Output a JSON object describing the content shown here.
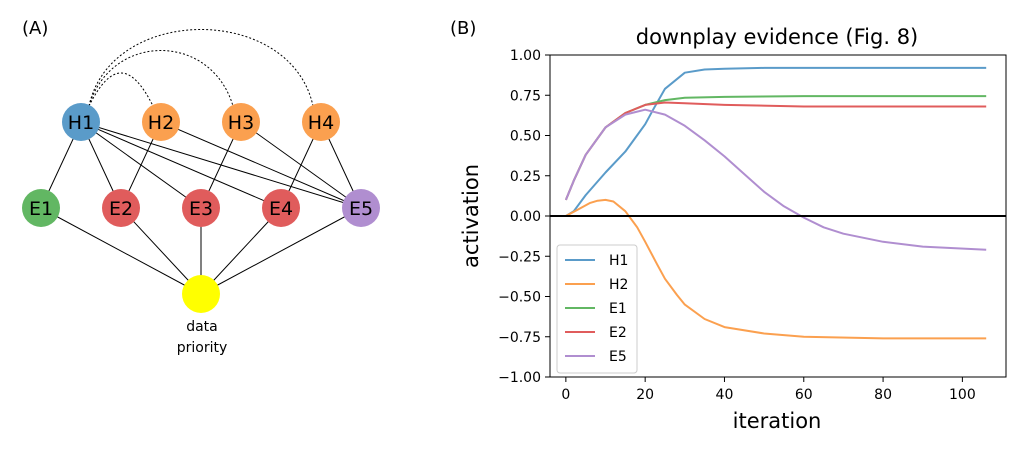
{
  "panel_a": {
    "label": "(A)",
    "nodes": [
      {
        "id": "H1",
        "label": "H1",
        "color": "#5a9bc9"
      },
      {
        "id": "H2",
        "label": "H2",
        "color": "#fba04f"
      },
      {
        "id": "H3",
        "label": "H3",
        "color": "#fba04f"
      },
      {
        "id": "H4",
        "label": "H4",
        "color": "#fba04f"
      },
      {
        "id": "E1",
        "label": "E1",
        "color": "#62b763"
      },
      {
        "id": "E2",
        "label": "E2",
        "color": "#e05c5c"
      },
      {
        "id": "E3",
        "label": "E3",
        "color": "#e05c5c"
      },
      {
        "id": "E4",
        "label": "E4",
        "color": "#e05c5c"
      },
      {
        "id": "E5",
        "label": "E5",
        "color": "#b08ed0"
      },
      {
        "id": "DP",
        "label": "",
        "color": "#ffff00"
      }
    ],
    "data_priority_label": [
      "data",
      "priority"
    ],
    "edges": [
      [
        "H1",
        "E1"
      ],
      [
        "H1",
        "E2"
      ],
      [
        "H1",
        "E3"
      ],
      [
        "H1",
        "E4"
      ],
      [
        "H1",
        "E5"
      ],
      [
        "H2",
        "E2"
      ],
      [
        "H2",
        "E5"
      ],
      [
        "H3",
        "E3"
      ],
      [
        "H3",
        "E5"
      ],
      [
        "H4",
        "E4"
      ],
      [
        "H4",
        "E5"
      ],
      [
        "E1",
        "DP"
      ],
      [
        "E2",
        "DP"
      ],
      [
        "E3",
        "DP"
      ],
      [
        "E4",
        "DP"
      ],
      [
        "E5",
        "DP"
      ]
    ],
    "contradictions": [
      [
        "H1",
        "H2"
      ],
      [
        "H1",
        "H3"
      ],
      [
        "H1",
        "H4"
      ]
    ]
  },
  "panel_b": {
    "label": "(B)"
  },
  "chart_data": {
    "type": "line",
    "title": "downplay evidence (Fig. 8)",
    "xlabel": "iteration",
    "ylabel": "activation",
    "xlim": [
      -4,
      111
    ],
    "ylim": [
      -1.0,
      1.0
    ],
    "xticks": [
      0,
      20,
      40,
      60,
      80,
      100
    ],
    "yticks": [
      -1.0,
      -0.75,
      -0.5,
      -0.25,
      0.0,
      0.25,
      0.5,
      0.75,
      1.0
    ],
    "ytick_labels": [
      "−1.00",
      "−0.75",
      "−0.50",
      "−0.25",
      "0.00",
      "0.25",
      "0.50",
      "0.75",
      "1.00"
    ],
    "hline": 0.0,
    "legend_position": "lower left",
    "series": [
      {
        "name": "H1",
        "color": "#5a9bc9",
        "x": [
          0,
          2,
          5,
          10,
          15,
          20,
          22,
          25,
          30,
          35,
          40,
          50,
          60,
          80,
          106
        ],
        "y": [
          0.0,
          0.03,
          0.13,
          0.27,
          0.4,
          0.57,
          0.66,
          0.79,
          0.89,
          0.91,
          0.915,
          0.92,
          0.92,
          0.92,
          0.92
        ]
      },
      {
        "name": "H2",
        "color": "#fba04f",
        "x": [
          0,
          3,
          6,
          8,
          10,
          12,
          15,
          18,
          20,
          23,
          25,
          28,
          30,
          35,
          40,
          50,
          60,
          80,
          106
        ],
        "y": [
          0.0,
          0.04,
          0.08,
          0.095,
          0.1,
          0.09,
          0.03,
          -0.07,
          -0.16,
          -0.3,
          -0.39,
          -0.49,
          -0.55,
          -0.64,
          -0.69,
          -0.73,
          -0.75,
          -0.76,
          -0.76
        ]
      },
      {
        "name": "E1",
        "color": "#62b763",
        "x": [
          0,
          2,
          5,
          10,
          15,
          20,
          25,
          30,
          40,
          60,
          80,
          106
        ],
        "y": [
          0.1,
          0.22,
          0.38,
          0.55,
          0.64,
          0.69,
          0.72,
          0.735,
          0.74,
          0.745,
          0.745,
          0.745
        ]
      },
      {
        "name": "E2",
        "color": "#e05c5c",
        "x": [
          0,
          2,
          5,
          10,
          15,
          20,
          25,
          30,
          40,
          60,
          80,
          106
        ],
        "y": [
          0.1,
          0.22,
          0.38,
          0.55,
          0.64,
          0.69,
          0.705,
          0.7,
          0.69,
          0.68,
          0.68,
          0.68
        ]
      },
      {
        "name": "E5",
        "color": "#b08ed0",
        "x": [
          0,
          2,
          5,
          10,
          15,
          20,
          25,
          30,
          35,
          40,
          45,
          50,
          55,
          60,
          65,
          70,
          80,
          90,
          106
        ],
        "y": [
          0.1,
          0.22,
          0.38,
          0.55,
          0.63,
          0.66,
          0.63,
          0.56,
          0.47,
          0.37,
          0.26,
          0.15,
          0.06,
          -0.01,
          -0.07,
          -0.11,
          -0.16,
          -0.19,
          -0.21
        ]
      }
    ]
  }
}
